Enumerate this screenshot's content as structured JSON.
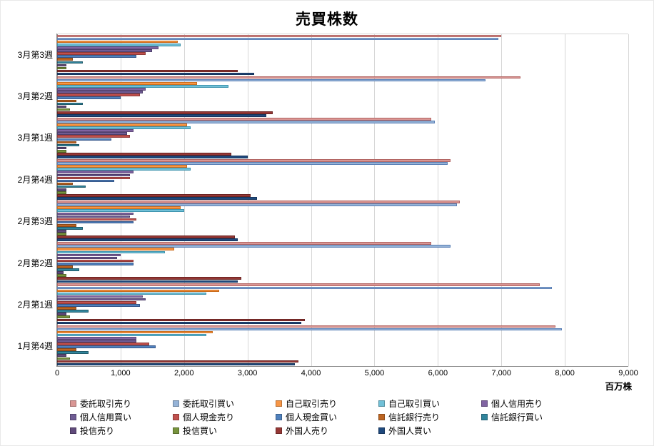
{
  "chart_data": {
    "type": "bar",
    "orientation": "horizontal",
    "title": "売買株数",
    "xlabel": "百万株",
    "xlim": [
      0,
      9000
    ],
    "grid": true,
    "legend_position": "bottom",
    "xtick_values": [
      0,
      1000,
      2000,
      3000,
      4000,
      5000,
      6000,
      7000,
      8000,
      9000
    ],
    "xtick_labels": [
      "0",
      "1,000",
      "2,000",
      "3,000",
      "4,000",
      "5,000",
      "6,000",
      "7,000",
      "8,000",
      "9,000"
    ],
    "categories": [
      "3月第3週",
      "3月第2週",
      "3月第1週",
      "2月第4週",
      "2月第3週",
      "2月第2週",
      "2月第1週",
      "1月第4週"
    ],
    "series": [
      {
        "name": "委託取引売り",
        "fill": "#d99694",
        "edge": "#b26563",
        "values": [
          7000,
          7300,
          5900,
          6200,
          6350,
          5900,
          7600,
          7850
        ]
      },
      {
        "name": "委託取引買い",
        "fill": "#95b3d7",
        "edge": "#5a7fb5",
        "values": [
          6950,
          6750,
          5950,
          6150,
          6300,
          6200,
          7800,
          7950
        ]
      },
      {
        "name": "自己取引売り",
        "fill": "#f79646",
        "edge": "#cb6d1d",
        "values": [
          1900,
          2200,
          2050,
          2050,
          1950,
          1850,
          2550,
          2450
        ]
      },
      {
        "name": "自己取引買い",
        "fill": "#71c0d7",
        "edge": "#3d93ad",
        "values": [
          1950,
          2700,
          2100,
          2100,
          2000,
          1700,
          2350,
          2350
        ]
      },
      {
        "name": "個人信用売り",
        "fill": "#8064a2",
        "edge": "#5e4878",
        "values": [
          1600,
          1400,
          1200,
          1200,
          1200,
          1000,
          1350,
          1250
        ]
      },
      {
        "name": "個人信用買い",
        "fill": "#6f5c94",
        "edge": "#4d3e6b",
        "values": [
          1500,
          1350,
          1100,
          1150,
          1150,
          950,
          1400,
          1250
        ]
      },
      {
        "name": "個人現金売り",
        "fill": "#c0504d",
        "edge": "#8f3a38",
        "values": [
          1400,
          1300,
          1150,
          1150,
          1250,
          1200,
          1250,
          1450
        ]
      },
      {
        "name": "個人現金買い",
        "fill": "#4f81bd",
        "edge": "#36578a",
        "values": [
          1250,
          1000,
          850,
          900,
          1200,
          1200,
          1300,
          1550
        ]
      },
      {
        "name": "信託銀行売り",
        "fill": "#bc6421",
        "edge": "#8a4716",
        "values": [
          250,
          300,
          300,
          250,
          300,
          250,
          300,
          300
        ]
      },
      {
        "name": "信託銀行買い",
        "fill": "#31859c",
        "edge": "#205a6a",
        "values": [
          400,
          400,
          350,
          450,
          400,
          350,
          500,
          500
        ]
      },
      {
        "name": "投信売り",
        "fill": "#604a7b",
        "edge": "#453558",
        "values": [
          150,
          150,
          150,
          150,
          150,
          100,
          150,
          150
        ]
      },
      {
        "name": "投信買い",
        "fill": "#77933c",
        "edge": "#52662a",
        "values": [
          150,
          200,
          150,
          150,
          150,
          150,
          200,
          200
        ]
      },
      {
        "name": "外国人売り",
        "fill": "#953735",
        "edge": "#6a2321",
        "values": [
          2850,
          3400,
          2750,
          3050,
          2800,
          2900,
          3900,
          3800
        ]
      },
      {
        "name": "外国人買い",
        "fill": "#1f497d",
        "edge": "#16345c",
        "values": [
          3100,
          3300,
          3000,
          3150,
          2850,
          2850,
          3850,
          3750
        ]
      }
    ]
  }
}
